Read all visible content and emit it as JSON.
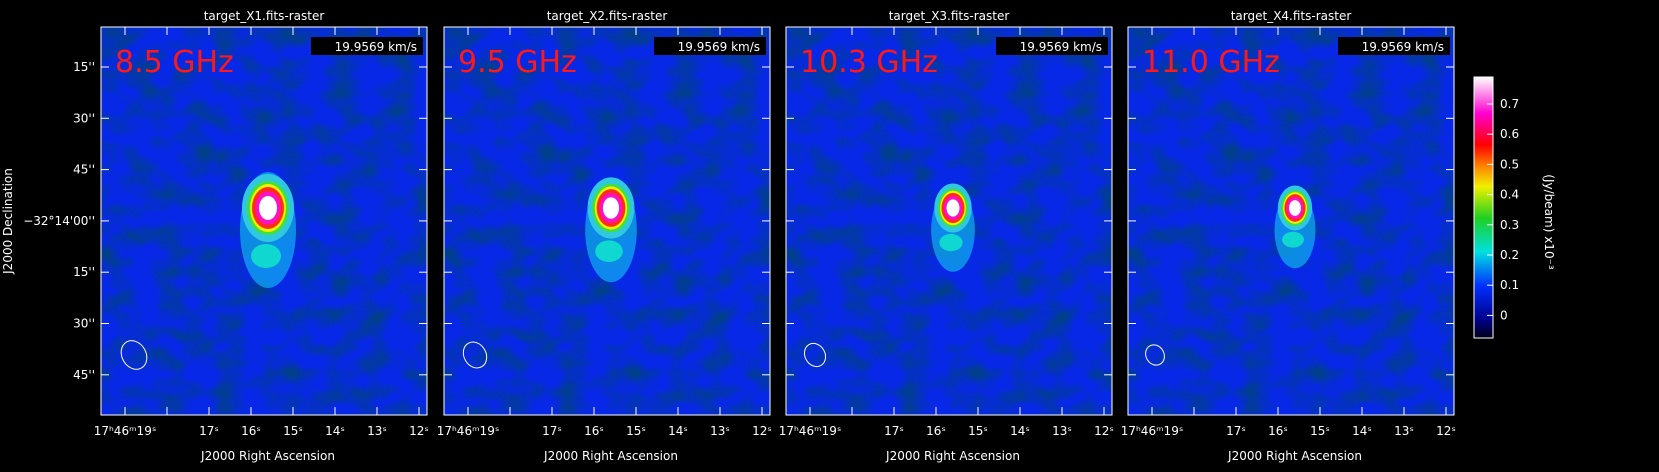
{
  "panels": [
    {
      "title": "target_X1.fits-raster",
      "frequency": "8.5 GHz",
      "velocity": "19.9569 km/s"
    },
    {
      "title": "target_X2.fits-raster",
      "frequency": "9.5 GHz",
      "velocity": "19.9569 km/s"
    },
    {
      "title": "target_X3.fits-raster",
      "frequency": "10.3 GHz",
      "velocity": "19.9569 km/s"
    },
    {
      "title": "target_X4.fits-raster",
      "frequency": "11.0 GHz",
      "velocity": "19.9569 km/s"
    }
  ],
  "x_axis": {
    "label": "J2000 Right Ascension",
    "ticks": [
      "17ʰ46ᵐ19ˢ",
      "17ˢ",
      "16ˢ",
      "15ˢ",
      "14ˢ",
      "13ˢ",
      "12ˢ"
    ]
  },
  "y_axis": {
    "label": "J2000 Declination",
    "ticks": [
      "15''",
      "30''",
      "45''",
      "−32°14'00''",
      "15''",
      "30''",
      "45''"
    ]
  },
  "colorbar": {
    "label": "(Jy/beam) x10⁻³",
    "ticks": [
      "0.7",
      "0.6",
      "0.5",
      "0.4",
      "0.3",
      "0.2",
      "0.1",
      "0"
    ]
  }
}
